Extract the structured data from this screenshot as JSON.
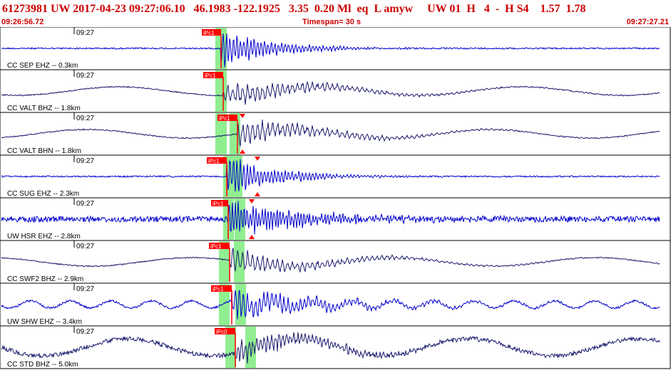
{
  "header": {
    "event_line": "61273981 UW 2017-04-23 09:27:06.10   46.1983 -122.1925   3.35  0.20 Ml  eq  L amyw     UW 01  H   4  -  H S4    1.57  1.78",
    "start_time": "09:26:56.72",
    "timespan": "Timespan=  30 s",
    "end_time": "09:27:27.21"
  },
  "colors": {
    "header_text": "#cc0000",
    "pick_flag": "#ff0000",
    "window_green": "#90ee90",
    "trace_blue": "#0000cc",
    "trace_navy": "#1a1a6e",
    "separator": "#000000"
  },
  "traces": [
    {
      "label": "CC SEP EHZ -- 0.3km",
      "time_tick": "09:27",
      "pick": "iPc1",
      "color": "#0000cc",
      "style": "burst",
      "s_marker": false
    },
    {
      "label": "CC VALT BHZ -- 1.8km",
      "time_tick": "09:27",
      "pick": "iPc1",
      "color": "#1a1a6e",
      "style": "long",
      "s_marker": false
    },
    {
      "label": "CC VALT BHN -- 1.8km",
      "time_tick": "09:27",
      "pick": "iPc1",
      "color": "#1a1a6e",
      "style": "long",
      "s_marker": true
    },
    {
      "label": "CC SUG EHZ -- 2.3km",
      "time_tick": "09:27",
      "pick": "iPc1",
      "color": "#0000cc",
      "style": "burst",
      "s_marker": true
    },
    {
      "label": "UW HSR EHZ -- 2.8km",
      "time_tick": "09:27",
      "pick": "iPc1",
      "color": "#0000cc",
      "style": "noisy",
      "s_marker": true
    },
    {
      "label": "CC SWF2 BHZ -- 2.9km",
      "time_tick": "09:27",
      "pick": "iPc1",
      "color": "#1a1a6e",
      "style": "long",
      "s_marker": false
    },
    {
      "label": "UW SHW EHZ -- 3.4km",
      "time_tick": "09:27",
      "pick": "iPc1",
      "color": "#0000cc",
      "style": "wavy",
      "s_marker": false
    },
    {
      "label": "CC STD BHZ -- 5.0km",
      "time_tick": "09:27",
      "pick": "iPc0",
      "color": "#1a1a6e",
      "style": "bigwave",
      "s_marker": false
    }
  ]
}
